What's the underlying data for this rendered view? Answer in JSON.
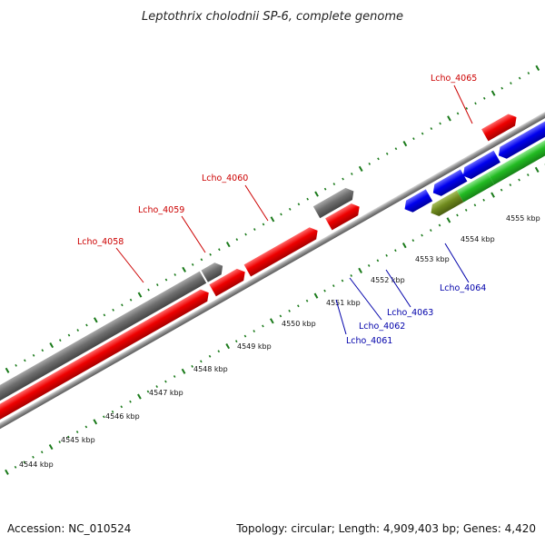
{
  "title": "Leptothrix cholodnii SP-6, complete genome",
  "footer": {
    "accession": "Accession: NC_010524",
    "summary": "Topology: circular; Length: 4,909,403 bp; Genes: 4,420"
  },
  "colors": {
    "forward_label": "#cc0000",
    "reverse_label": "#0000aa",
    "tick": "#1a7a1a",
    "backbone": "#8c8c8c",
    "gene_red": "#ee0000",
    "gene_gray": "#6e6e6e",
    "gene_blue": "#0000ee",
    "gene_green": "#22bb22",
    "gene_olive": "#6f8a1e"
  },
  "ruler_labels": [
    "4544 kbp",
    "4545 kbp",
    "4546 kbp",
    "4547 kbp",
    "4548 kbp",
    "4549 kbp",
    "4550 kbp",
    "4551 kbp",
    "4552 kbp",
    "4553 kbp",
    "4554 kbp",
    "4555 kbp"
  ],
  "forward_gene_labels": [
    "Lcho_4058",
    "Lcho_4059",
    "Lcho_4060",
    "Lcho_4065"
  ],
  "reverse_gene_labels": [
    "Lcho_4061",
    "Lcho_4062",
    "Lcho_4063",
    "Lcho_4064"
  ]
}
